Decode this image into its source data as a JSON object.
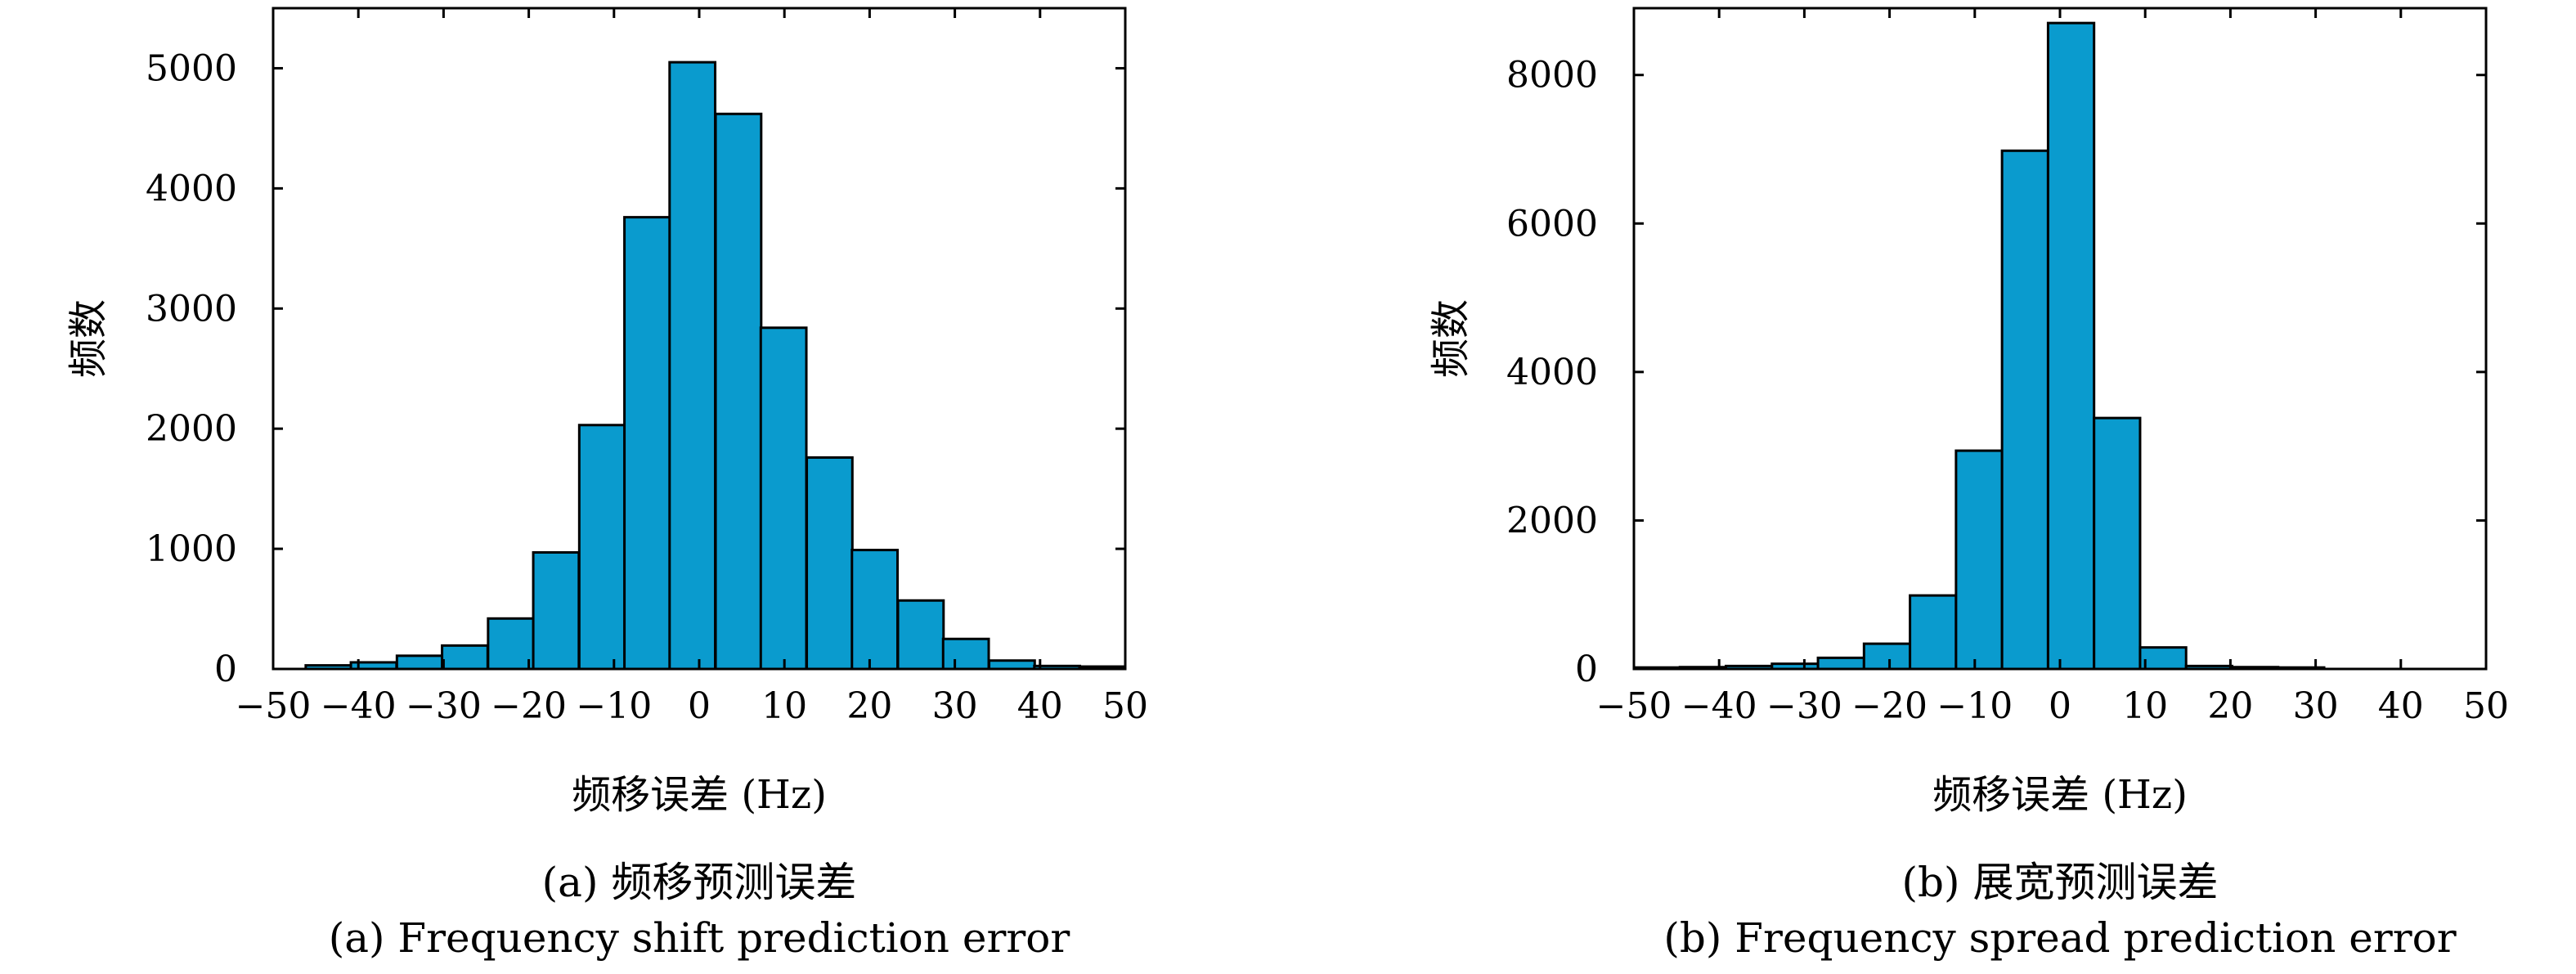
{
  "chart_data": [
    {
      "type": "bar",
      "subtitle": "(a) 频移预测误差",
      "subtitle_en": "(a) Frequency shift prediction error",
      "xlabel": "频移误差 (Hz)",
      "ylabel": "频数",
      "xlim": [
        -50,
        50
      ],
      "ylim": [
        0,
        5500
      ],
      "xticks": [
        -50,
        -40,
        -30,
        -20,
        -10,
        0,
        10,
        20,
        30,
        40,
        50
      ],
      "yticks": [
        0,
        1000,
        2000,
        3000,
        4000,
        5000
      ],
      "xtick_labels": [
        "−50",
        "−40",
        "−30",
        "−20",
        "−10",
        "0",
        "10",
        "20",
        "30",
        "40",
        "50"
      ],
      "ytick_labels": [
        "0",
        "1000",
        "2000",
        "3000",
        "4000",
        "5000"
      ],
      "bin_width": 5.35,
      "bin_centers": [
        -43.5,
        -38.2,
        -32.8,
        -27.5,
        -22.1,
        -16.8,
        -11.4,
        -6.1,
        -0.8,
        4.6,
        9.9,
        15.3,
        20.6,
        26.0,
        31.3,
        36.7,
        42.0,
        47.3
      ],
      "values": [
        30,
        55,
        110,
        195,
        420,
        970,
        2030,
        3760,
        5050,
        4620,
        2840,
        1760,
        990,
        570,
        250,
        70,
        25,
        20
      ],
      "color": "#0a9bce"
    },
    {
      "type": "bar",
      "subtitle": "(b) 展宽预测误差",
      "subtitle_en": "(b) Frequency spread prediction error",
      "xlabel": "频移误差 (Hz)",
      "ylabel": "频数",
      "xlim": [
        -50,
        50
      ],
      "ylim": [
        0,
        8900
      ],
      "xticks": [
        -50,
        -40,
        -30,
        -20,
        -10,
        0,
        10,
        20,
        30,
        40,
        50
      ],
      "yticks": [
        0,
        2000,
        4000,
        6000,
        8000
      ],
      "xtick_labels": [
        "−50",
        "−40",
        "−30",
        "−20",
        "−10",
        "0",
        "10",
        "20",
        "30",
        "40",
        "50"
      ],
      "ytick_labels": [
        "0",
        "2000",
        "4000",
        "6000",
        "8000"
      ],
      "bin_width": 5.4,
      "bin_centers": [
        -47.3,
        -41.9,
        -36.5,
        -31.1,
        -25.7,
        -20.3,
        -14.9,
        -9.5,
        -4.1,
        1.3,
        6.7,
        12.1,
        17.5,
        22.9,
        28.3
      ],
      "values": [
        20,
        25,
        40,
        70,
        150,
        340,
        990,
        2940,
        6980,
        8700,
        3380,
        290,
        40,
        25,
        20
      ],
      "color": "#0a9bce"
    }
  ]
}
